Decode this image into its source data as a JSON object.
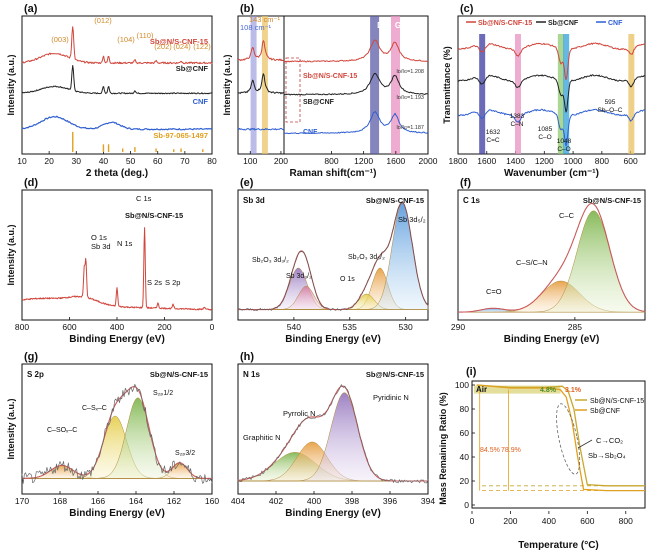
{
  "figure": {
    "panels": [
      "(a)",
      "(b)",
      "(c)",
      "(d)",
      "(e)",
      "(f)",
      "(g)",
      "(h)",
      "(i)"
    ]
  },
  "chart_data": [
    {
      "id": "a",
      "type": "line",
      "xlabel": "2 theta (deg.)",
      "ylabel": "Intensity (a.u.)",
      "xlim": [
        10,
        80
      ],
      "xticks": [
        10,
        20,
        30,
        40,
        50,
        60,
        70,
        80
      ],
      "series": [
        {
          "name": "Sb@N/S-CNF-15",
          "color": "#d0463c"
        },
        {
          "name": "Sb@CNF",
          "color": "#222222"
        },
        {
          "name": "CNF",
          "color": "#2f5fd0"
        },
        {
          "name": "Sb-97-065-1497",
          "color": "#e0a020"
        }
      ],
      "ref_peaks": [
        28.7,
        40.0,
        41.9,
        47.1,
        51.6,
        59.4,
        65.9,
        68.6,
        76.6
      ],
      "annotations": [
        "(012)",
        "(003)",
        "(104)",
        "(110)",
        "(202)",
        "(024)",
        "(122)"
      ]
    },
    {
      "id": "b",
      "type": "line",
      "xlabel": "Raman shift(cm⁻¹)",
      "ylabel": "Intensity (a.u.)",
      "xticks": [
        100,
        200,
        800,
        1200,
        1600,
        2000
      ],
      "series": [
        {
          "name": "Sb@N/S-CNF-15",
          "color": "#d0463c",
          "ratio": "Iᴅ/Iɢ=1.208"
        },
        {
          "name": "SB@CNF",
          "color": "#222222",
          "ratio": "Iᴅ/Iɢ=1.193"
        },
        {
          "name": "CNF",
          "color": "#2f5fd0",
          "ratio": "Iᴅ/Iɢ=1.187"
        }
      ],
      "annotations": [
        "143 cm⁻¹",
        "108 cm⁻¹",
        "D",
        "G"
      ]
    },
    {
      "id": "c",
      "type": "line",
      "xlabel": "Wavenumber (cm⁻¹)",
      "ylabel": "Transmittance (%)",
      "xlim": [
        1800,
        500
      ],
      "xticks": [
        1800,
        1600,
        1400,
        1200,
        1000,
        800,
        600
      ],
      "series": [
        {
          "name": "Sb@N/S-CNF-15",
          "color": "#d0463c"
        },
        {
          "name": "Sb@CNF",
          "color": "#222222"
        },
        {
          "name": "CNF",
          "color": "#2f5fd0"
        }
      ],
      "annotations": [
        {
          "x": 1632,
          "label": "1632",
          "label2": "C=C"
        },
        {
          "x": 1383,
          "label": "1383",
          "label2": "C–N"
        },
        {
          "x": 1085,
          "label": "1085",
          "label2": "C–O"
        },
        {
          "x": 1048,
          "label": "1048",
          "label2": "C–O"
        },
        {
          "x": 595,
          "label": "595",
          "label2": "Sb–O–C"
        }
      ]
    },
    {
      "id": "d",
      "type": "line",
      "xlabel": "Binding Energy (eV)",
      "ylabel": "Intensity (a.u.)",
      "xlim": [
        800,
        0
      ],
      "xticks": [
        800,
        600,
        400,
        200,
        0
      ],
      "sample": "Sb@N/S-CNF-15",
      "annotations": [
        "O 1s",
        "Sb 3d",
        "N 1s",
        "C 1s",
        "S 2s",
        "S 2p"
      ]
    },
    {
      "id": "e",
      "type": "line",
      "xlabel": "Binding Energy (eV)",
      "ylabel": "",
      "xlim": [
        545,
        528
      ],
      "xticks": [
        540,
        535,
        530
      ],
      "title": "Sb 3d",
      "sample": "Sb@N/S-CNF-15",
      "annotations": [
        "Sb 3d₃/₂",
        "Sb 3d₅/₂",
        "Sb₂O₃ 3d₃/₂",
        "Sb₂O₃ 3d₅/₂",
        "O 1s"
      ]
    },
    {
      "id": "f",
      "type": "line",
      "xlabel": "Binding Energy (eV)",
      "ylabel": "",
      "xlim": [
        290,
        282
      ],
      "xticks": [
        290,
        285
      ],
      "title": "C 1s",
      "sample": "Sb@N/S-CNF-15",
      "annotations": [
        "C–C",
        "C–S/C–N",
        "C=O"
      ]
    },
    {
      "id": "g",
      "type": "line",
      "xlabel": "Binding Energy (eV)",
      "ylabel": "Intensity (a.u.)",
      "xlim": [
        170,
        160
      ],
      "xticks": [
        170,
        168,
        166,
        164,
        162,
        160
      ],
      "title": "S 2p",
      "sample": "Sb@N/S-CNF-15",
      "annotations": [
        "C–SOₓ–C",
        "C–Sₓ–C",
        "S₂ₚ1/2",
        "S₂ₚ3/2"
      ]
    },
    {
      "id": "h",
      "type": "line",
      "xlabel": "Binding Energy (eV)",
      "ylabel": "",
      "xlim": [
        404,
        394
      ],
      "xticks": [
        404,
        402,
        400,
        398,
        396,
        394
      ],
      "title": "N 1s",
      "sample": "Sb@N/S-CNF-15",
      "annotations": [
        "Pyridinic N",
        "Pyrrolic N",
        "Graphitic N"
      ]
    },
    {
      "id": "i",
      "type": "line",
      "xlabel": "Temperature (°C)",
      "ylabel": "Mass Remaining Ratio (%)",
      "xlim": [
        0,
        900
      ],
      "ylim": [
        0,
        100
      ],
      "xticks": [
        0,
        200,
        400,
        600,
        800
      ],
      "yticks": [
        0,
        20,
        40,
        60,
        80,
        100
      ],
      "title": "Air",
      "series": [
        {
          "name": "Sb@N/S-CNF-15",
          "color": "#c8a830",
          "x": [
            25,
            200,
            380,
            430,
            470,
            500,
            530,
            560,
            600,
            700,
            900
          ],
          "y": [
            100,
            98,
            98,
            98.5,
            99,
            95,
            80,
            50,
            17,
            16,
            16
          ]
        },
        {
          "name": "Sb@CNF",
          "color": "#e0a020",
          "x": [
            25,
            200,
            380,
            430,
            460,
            490,
            520,
            550,
            580,
            700,
            900
          ],
          "y": [
            100,
            97.5,
            97.5,
            97,
            96,
            90,
            70,
            40,
            13,
            12,
            12
          ]
        }
      ],
      "annotations": [
        "4.8%",
        "3.1%",
        "84.5%",
        "78.9%",
        "C→CO₂",
        "Sb→Sb₂O₄"
      ]
    }
  ]
}
